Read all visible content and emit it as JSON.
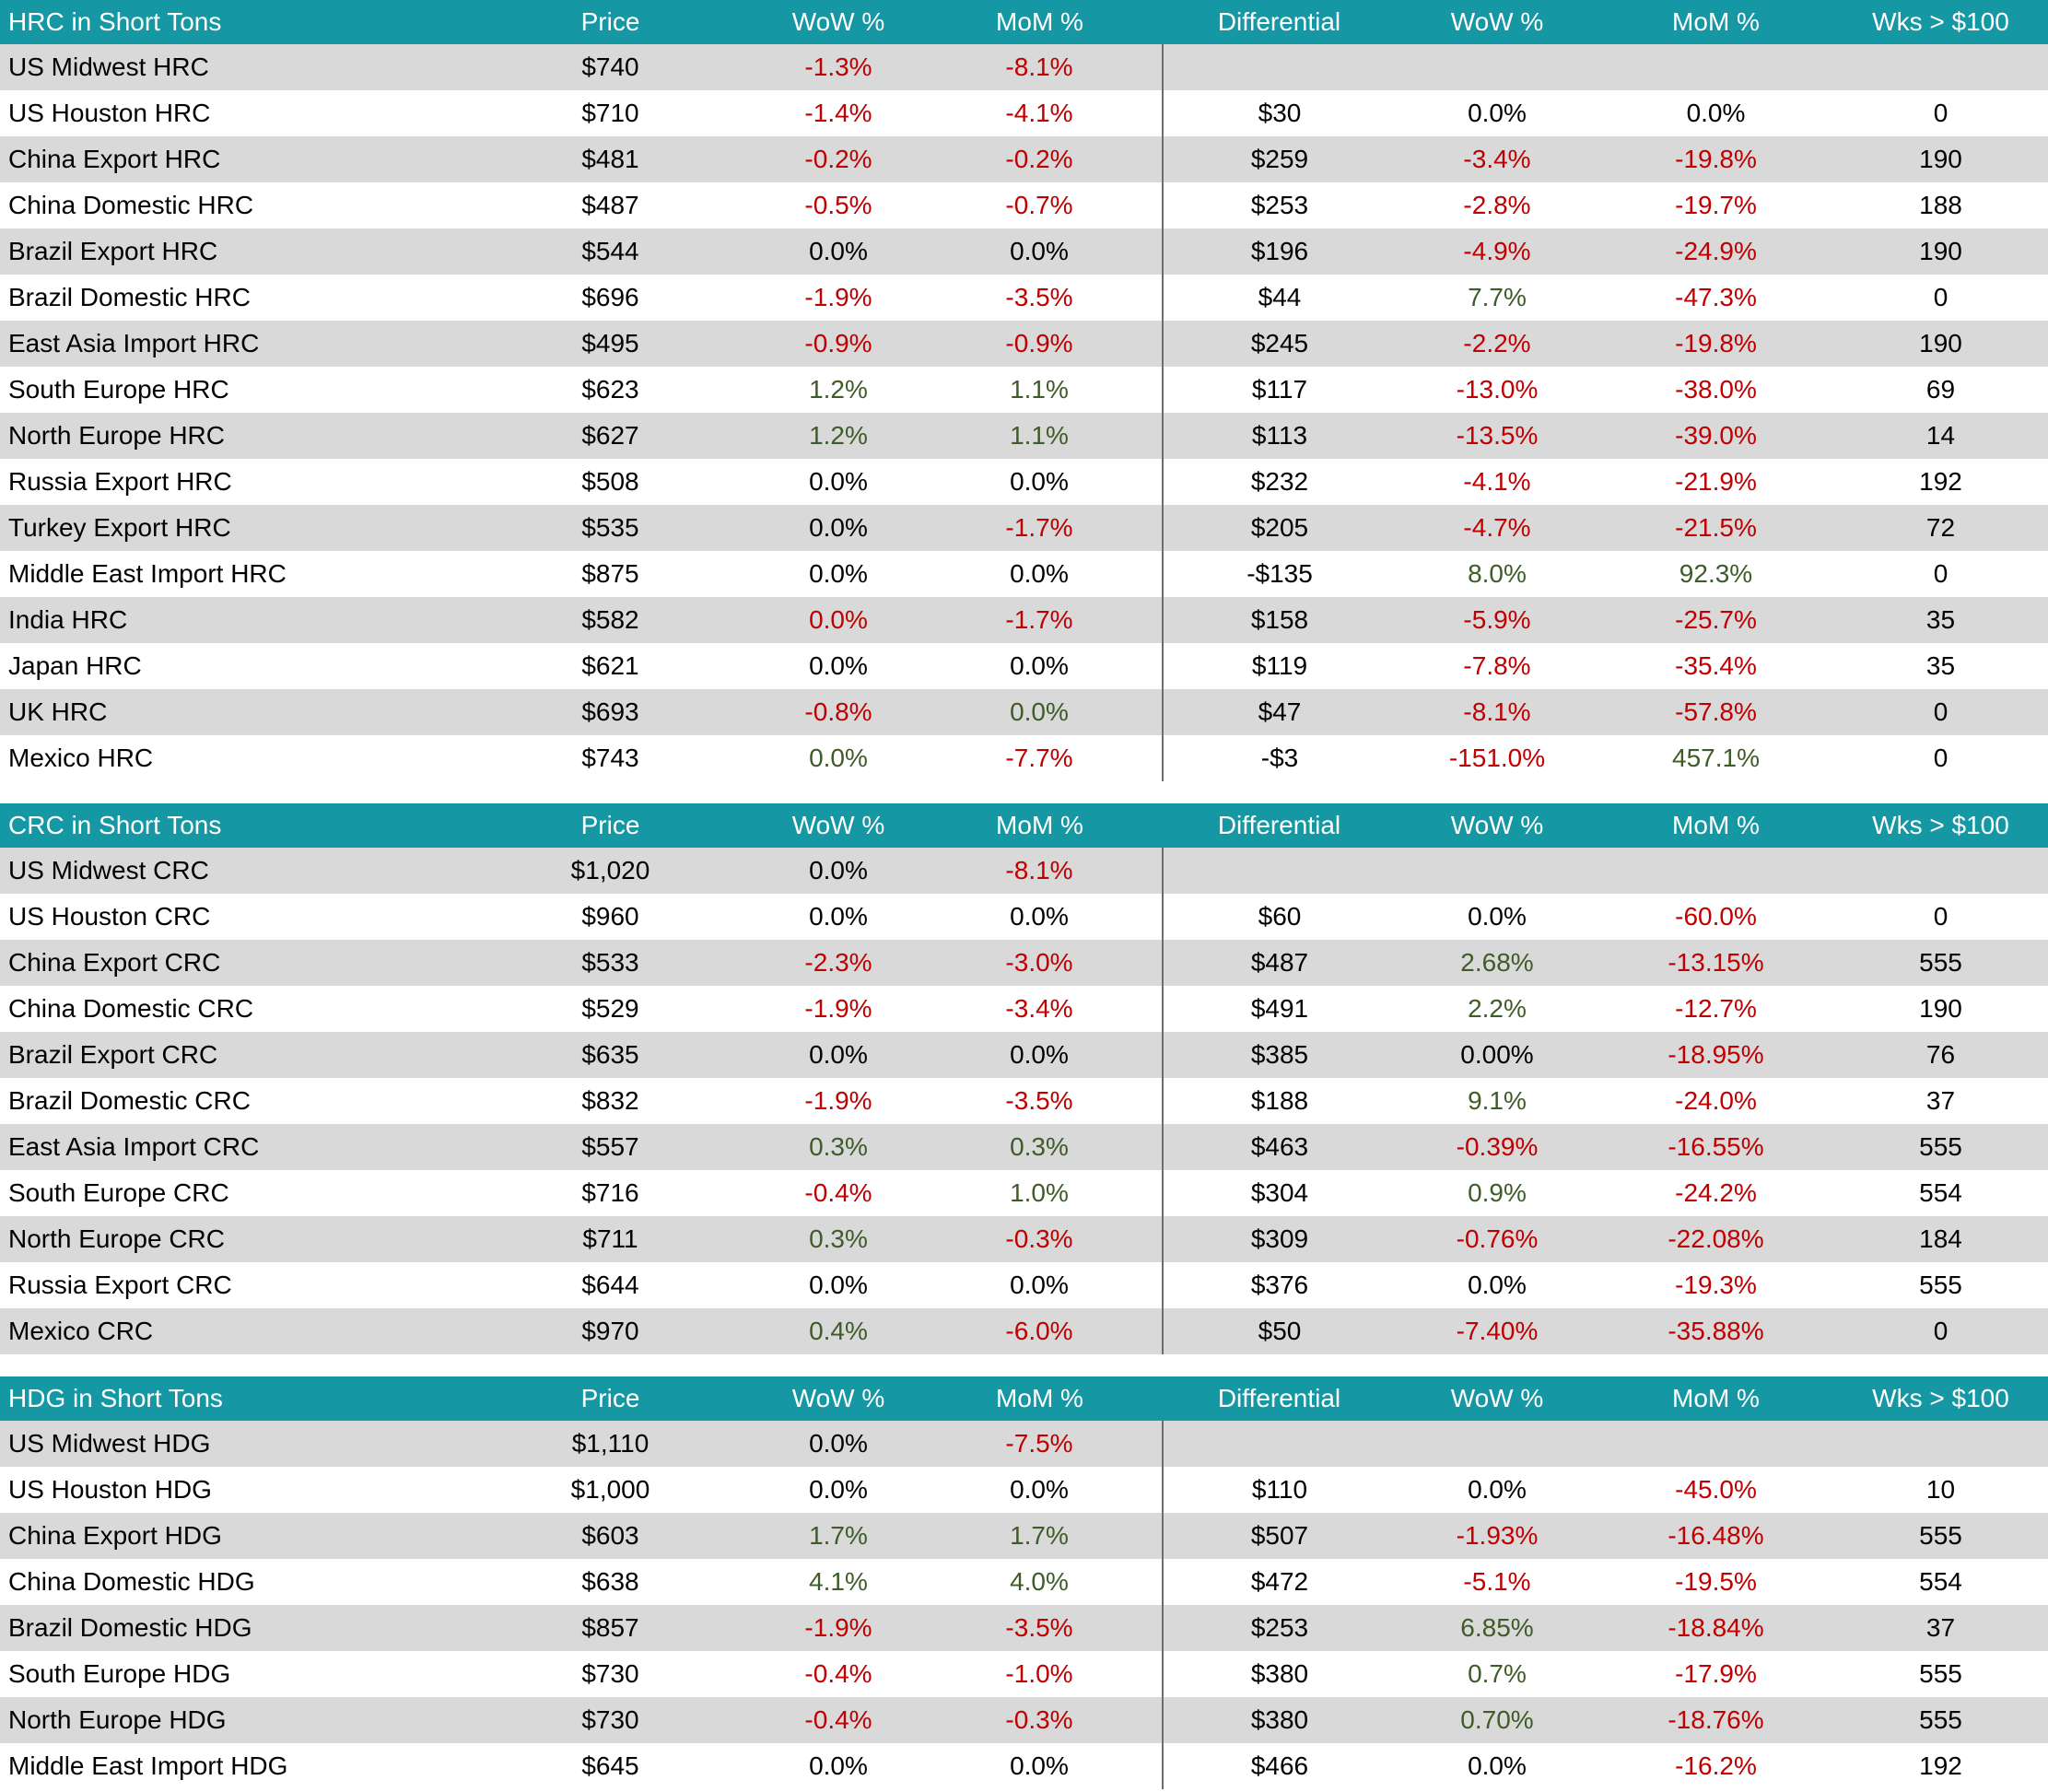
{
  "palette": {
    "header_bg": "#1597A4",
    "header_text": "#FFFFFF",
    "row_alt_bg": "#D9D9D9",
    "row_bg": "#FFFFFF",
    "negative_text": "#C00000",
    "positive_text": "#3E5C28",
    "divider_line": "#6E6E6E"
  },
  "columns": [
    "Price",
    "WoW %",
    "MoM %",
    "Differential",
    "WoW %",
    "MoM %",
    "Wks > $100"
  ],
  "tables": [
    {
      "title": "HRC in Short Tons",
      "rows": [
        {
          "label": "US Midwest HRC",
          "cells": [
            {
              "t": "$740"
            },
            {
              "t": "-1.3%",
              "c": "n"
            },
            {
              "t": "-8.1%",
              "c": "n"
            },
            {
              "t": ""
            },
            {
              "t": ""
            },
            {
              "t": ""
            },
            {
              "t": ""
            }
          ]
        },
        {
          "label": "US Houston HRC",
          "cells": [
            {
              "t": "$710"
            },
            {
              "t": "-1.4%",
              "c": "n"
            },
            {
              "t": "-4.1%",
              "c": "n"
            },
            {
              "t": "$30"
            },
            {
              "t": "0.0%"
            },
            {
              "t": "0.0%"
            },
            {
              "t": "0"
            }
          ]
        },
        {
          "label": "China Export HRC",
          "cells": [
            {
              "t": "$481"
            },
            {
              "t": "-0.2%",
              "c": "n"
            },
            {
              "t": "-0.2%",
              "c": "n"
            },
            {
              "t": "$259"
            },
            {
              "t": "-3.4%",
              "c": "n"
            },
            {
              "t": "-19.8%",
              "c": "n"
            },
            {
              "t": "190"
            }
          ]
        },
        {
          "label": "China Domestic HRC",
          "cells": [
            {
              "t": "$487"
            },
            {
              "t": "-0.5%",
              "c": "n"
            },
            {
              "t": "-0.7%",
              "c": "n"
            },
            {
              "t": "$253"
            },
            {
              "t": "-2.8%",
              "c": "n"
            },
            {
              "t": "-19.7%",
              "c": "n"
            },
            {
              "t": "188"
            }
          ]
        },
        {
          "label": "Brazil Export HRC",
          "cells": [
            {
              "t": "$544"
            },
            {
              "t": "0.0%"
            },
            {
              "t": "0.0%"
            },
            {
              "t": "$196"
            },
            {
              "t": "-4.9%",
              "c": "n"
            },
            {
              "t": "-24.9%",
              "c": "n"
            },
            {
              "t": "190"
            }
          ]
        },
        {
          "label": "Brazil Domestic HRC",
          "cells": [
            {
              "t": "$696"
            },
            {
              "t": "-1.9%",
              "c": "n"
            },
            {
              "t": "-3.5%",
              "c": "n"
            },
            {
              "t": "$44"
            },
            {
              "t": "7.7%",
              "c": "p"
            },
            {
              "t": "-47.3%",
              "c": "n"
            },
            {
              "t": "0"
            }
          ]
        },
        {
          "label": "East Asia Import HRC",
          "cells": [
            {
              "t": "$495"
            },
            {
              "t": "-0.9%",
              "c": "n"
            },
            {
              "t": "-0.9%",
              "c": "n"
            },
            {
              "t": "$245"
            },
            {
              "t": "-2.2%",
              "c": "n"
            },
            {
              "t": "-19.8%",
              "c": "n"
            },
            {
              "t": "190"
            }
          ]
        },
        {
          "label": "South Europe HRC",
          "cells": [
            {
              "t": "$623"
            },
            {
              "t": "1.2%",
              "c": "p"
            },
            {
              "t": "1.1%",
              "c": "p"
            },
            {
              "t": "$117"
            },
            {
              "t": "-13.0%",
              "c": "n"
            },
            {
              "t": "-38.0%",
              "c": "n"
            },
            {
              "t": "69"
            }
          ]
        },
        {
          "label": "North Europe HRC",
          "cells": [
            {
              "t": "$627"
            },
            {
              "t": "1.2%",
              "c": "p"
            },
            {
              "t": "1.1%",
              "c": "p"
            },
            {
              "t": "$113"
            },
            {
              "t": "-13.5%",
              "c": "n"
            },
            {
              "t": "-39.0%",
              "c": "n"
            },
            {
              "t": "14"
            }
          ]
        },
        {
          "label": "Russia Export HRC",
          "cells": [
            {
              "t": "$508"
            },
            {
              "t": "0.0%"
            },
            {
              "t": "0.0%"
            },
            {
              "t": "$232"
            },
            {
              "t": "-4.1%",
              "c": "n"
            },
            {
              "t": "-21.9%",
              "c": "n"
            },
            {
              "t": "192"
            }
          ]
        },
        {
          "label": "Turkey Export HRC",
          "cells": [
            {
              "t": "$535"
            },
            {
              "t": "0.0%"
            },
            {
              "t": "-1.7%",
              "c": "n"
            },
            {
              "t": "$205"
            },
            {
              "t": "-4.7%",
              "c": "n"
            },
            {
              "t": "-21.5%",
              "c": "n"
            },
            {
              "t": "72"
            }
          ]
        },
        {
          "label": "Middle East Import HRC",
          "cells": [
            {
              "t": "$875"
            },
            {
              "t": "0.0%"
            },
            {
              "t": "0.0%"
            },
            {
              "t": "-$135"
            },
            {
              "t": "8.0%",
              "c": "p"
            },
            {
              "t": "92.3%",
              "c": "p"
            },
            {
              "t": "0"
            }
          ]
        },
        {
          "label": "India HRC",
          "cells": [
            {
              "t": "$582"
            },
            {
              "t": "0.0%",
              "c": "n"
            },
            {
              "t": "-1.7%",
              "c": "n"
            },
            {
              "t": "$158"
            },
            {
              "t": "-5.9%",
              "c": "n"
            },
            {
              "t": "-25.7%",
              "c": "n"
            },
            {
              "t": "35"
            }
          ]
        },
        {
          "label": "Japan HRC",
          "cells": [
            {
              "t": "$621"
            },
            {
              "t": "0.0%"
            },
            {
              "t": "0.0%"
            },
            {
              "t": "$119"
            },
            {
              "t": "-7.8%",
              "c": "n"
            },
            {
              "t": "-35.4%",
              "c": "n"
            },
            {
              "t": "35"
            }
          ]
        },
        {
          "label": "UK HRC",
          "cells": [
            {
              "t": "$693"
            },
            {
              "t": "-0.8%",
              "c": "n"
            },
            {
              "t": "0.0%",
              "c": "p"
            },
            {
              "t": "$47"
            },
            {
              "t": "-8.1%",
              "c": "n"
            },
            {
              "t": "-57.8%",
              "c": "n"
            },
            {
              "t": "0"
            }
          ]
        },
        {
          "label": "Mexico HRC",
          "cells": [
            {
              "t": "$743"
            },
            {
              "t": "0.0%",
              "c": "p"
            },
            {
              "t": "-7.7%",
              "c": "n"
            },
            {
              "t": "-$3"
            },
            {
              "t": "-151.0%",
              "c": "n"
            },
            {
              "t": "457.1%",
              "c": "p"
            },
            {
              "t": "0"
            }
          ]
        }
      ]
    },
    {
      "title": "CRC in Short Tons",
      "rows": [
        {
          "label": "US Midwest CRC",
          "cells": [
            {
              "t": "$1,020"
            },
            {
              "t": "0.0%"
            },
            {
              "t": "-8.1%",
              "c": "n"
            },
            {
              "t": ""
            },
            {
              "t": ""
            },
            {
              "t": ""
            },
            {
              "t": ""
            }
          ]
        },
        {
          "label": "US Houston CRC",
          "cells": [
            {
              "t": "$960"
            },
            {
              "t": "0.0%"
            },
            {
              "t": "0.0%"
            },
            {
              "t": "$60"
            },
            {
              "t": "0.0%"
            },
            {
              "t": "-60.0%",
              "c": "n"
            },
            {
              "t": "0"
            }
          ]
        },
        {
          "label": "China Export CRC",
          "cells": [
            {
              "t": "$533"
            },
            {
              "t": "-2.3%",
              "c": "n"
            },
            {
              "t": "-3.0%",
              "c": "n"
            },
            {
              "t": "$487"
            },
            {
              "t": "2.68%",
              "c": "p"
            },
            {
              "t": "-13.15%",
              "c": "n"
            },
            {
              "t": "555"
            }
          ]
        },
        {
          "label": "China Domestic CRC",
          "cells": [
            {
              "t": "$529"
            },
            {
              "t": "-1.9%",
              "c": "n"
            },
            {
              "t": "-3.4%",
              "c": "n"
            },
            {
              "t": "$491"
            },
            {
              "t": "2.2%",
              "c": "p"
            },
            {
              "t": "-12.7%",
              "c": "n"
            },
            {
              "t": "190"
            }
          ]
        },
        {
          "label": "Brazil Export CRC",
          "cells": [
            {
              "t": "$635"
            },
            {
              "t": "0.0%"
            },
            {
              "t": "0.0%"
            },
            {
              "t": "$385"
            },
            {
              "t": "0.00%"
            },
            {
              "t": "-18.95%",
              "c": "n"
            },
            {
              "t": "76"
            }
          ]
        },
        {
          "label": "Brazil Domestic CRC",
          "cells": [
            {
              "t": "$832"
            },
            {
              "t": "-1.9%",
              "c": "n"
            },
            {
              "t": "-3.5%",
              "c": "n"
            },
            {
              "t": "$188"
            },
            {
              "t": "9.1%",
              "c": "p"
            },
            {
              "t": "-24.0%",
              "c": "n"
            },
            {
              "t": "37"
            }
          ]
        },
        {
          "label": "East Asia Import CRC",
          "cells": [
            {
              "t": "$557"
            },
            {
              "t": "0.3%",
              "c": "p"
            },
            {
              "t": "0.3%",
              "c": "p"
            },
            {
              "t": "$463"
            },
            {
              "t": "-0.39%",
              "c": "n"
            },
            {
              "t": "-16.55%",
              "c": "n"
            },
            {
              "t": "555"
            }
          ]
        },
        {
          "label": "South Europe CRC",
          "cells": [
            {
              "t": "$716"
            },
            {
              "t": "-0.4%",
              "c": "n"
            },
            {
              "t": "1.0%",
              "c": "p"
            },
            {
              "t": "$304"
            },
            {
              "t": "0.9%",
              "c": "p"
            },
            {
              "t": "-24.2%",
              "c": "n"
            },
            {
              "t": "554"
            }
          ]
        },
        {
          "label": "North Europe CRC",
          "cells": [
            {
              "t": "$711"
            },
            {
              "t": "0.3%",
              "c": "p"
            },
            {
              "t": "-0.3%",
              "c": "n"
            },
            {
              "t": "$309"
            },
            {
              "t": "-0.76%",
              "c": "n"
            },
            {
              "t": "-22.08%",
              "c": "n"
            },
            {
              "t": "184"
            }
          ]
        },
        {
          "label": "Russia Export CRC",
          "cells": [
            {
              "t": "$644"
            },
            {
              "t": "0.0%"
            },
            {
              "t": "0.0%"
            },
            {
              "t": "$376"
            },
            {
              "t": "0.0%"
            },
            {
              "t": "-19.3%",
              "c": "n"
            },
            {
              "t": "555"
            }
          ]
        },
        {
          "label": "Mexico CRC",
          "cells": [
            {
              "t": "$970"
            },
            {
              "t": "0.4%",
              "c": "p"
            },
            {
              "t": "-6.0%",
              "c": "n"
            },
            {
              "t": "$50"
            },
            {
              "t": "-7.40%",
              "c": "n"
            },
            {
              "t": "-35.88%",
              "c": "n"
            },
            {
              "t": "0"
            }
          ]
        }
      ]
    },
    {
      "title": "HDG in Short Tons",
      "rows": [
        {
          "label": "US Midwest HDG",
          "cells": [
            {
              "t": "$1,110"
            },
            {
              "t": "0.0%"
            },
            {
              "t": "-7.5%",
              "c": "n"
            },
            {
              "t": ""
            },
            {
              "t": ""
            },
            {
              "t": ""
            },
            {
              "t": ""
            }
          ]
        },
        {
          "label": "US Houston HDG",
          "cells": [
            {
              "t": "$1,000"
            },
            {
              "t": "0.0%"
            },
            {
              "t": "0.0%"
            },
            {
              "t": "$110"
            },
            {
              "t": "0.0%"
            },
            {
              "t": "-45.0%",
              "c": "n"
            },
            {
              "t": "10"
            }
          ]
        },
        {
          "label": "China Export HDG",
          "cells": [
            {
              "t": "$603"
            },
            {
              "t": "1.7%",
              "c": "p"
            },
            {
              "t": "1.7%",
              "c": "p"
            },
            {
              "t": "$507"
            },
            {
              "t": "-1.93%",
              "c": "n"
            },
            {
              "t": "-16.48%",
              "c": "n"
            },
            {
              "t": "555"
            }
          ]
        },
        {
          "label": "China Domestic HDG",
          "cells": [
            {
              "t": "$638"
            },
            {
              "t": "4.1%",
              "c": "p"
            },
            {
              "t": "4.0%",
              "c": "p"
            },
            {
              "t": "$472"
            },
            {
              "t": "-5.1%",
              "c": "n"
            },
            {
              "t": "-19.5%",
              "c": "n"
            },
            {
              "t": "554"
            }
          ]
        },
        {
          "label": "Brazil Domestic HDG",
          "cells": [
            {
              "t": "$857"
            },
            {
              "t": "-1.9%",
              "c": "n"
            },
            {
              "t": "-3.5%",
              "c": "n"
            },
            {
              "t": "$253"
            },
            {
              "t": "6.85%",
              "c": "p"
            },
            {
              "t": "-18.84%",
              "c": "n"
            },
            {
              "t": "37"
            }
          ]
        },
        {
          "label": "South Europe HDG",
          "cells": [
            {
              "t": "$730"
            },
            {
              "t": "-0.4%",
              "c": "n"
            },
            {
              "t": "-1.0%",
              "c": "n"
            },
            {
              "t": "$380"
            },
            {
              "t": "0.7%",
              "c": "p"
            },
            {
              "t": "-17.9%",
              "c": "n"
            },
            {
              "t": "555"
            }
          ]
        },
        {
          "label": "North Europe HDG",
          "cells": [
            {
              "t": "$730"
            },
            {
              "t": "-0.4%",
              "c": "n"
            },
            {
              "t": "-0.3%",
              "c": "n"
            },
            {
              "t": "$380"
            },
            {
              "t": "0.70%",
              "c": "p"
            },
            {
              "t": "-18.76%",
              "c": "n"
            },
            {
              "t": "555"
            }
          ]
        },
        {
          "label": "Middle East Import HDG",
          "cells": [
            {
              "t": "$645"
            },
            {
              "t": "0.0%"
            },
            {
              "t": "0.0%"
            },
            {
              "t": "$466"
            },
            {
              "t": "0.0%"
            },
            {
              "t": "-16.2%",
              "c": "n"
            },
            {
              "t": "192"
            }
          ]
        }
      ]
    }
  ]
}
